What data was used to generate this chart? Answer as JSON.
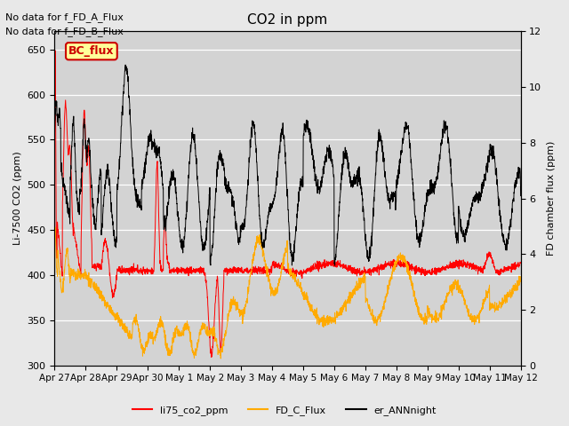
{
  "title": "CO2 in ppm",
  "ylabel_left": "Li-7500 CO2 (ppm)",
  "ylabel_right": "FD chamber flux (ppm)",
  "ylim_left": [
    300,
    670
  ],
  "ylim_right": [
    0,
    12
  ],
  "yticks_left": [
    300,
    350,
    400,
    450,
    500,
    550,
    600,
    650
  ],
  "yticks_right": [
    0,
    2,
    4,
    6,
    8,
    10,
    12
  ],
  "xlabel_dates": [
    "Apr 27",
    "Apr 28",
    "Apr 29",
    "Apr 30",
    "May 1",
    "May 2",
    "May 3",
    "May 4",
    "May 5",
    "May 6",
    "May 7",
    "May 8",
    "May 9",
    "May 10",
    "May 11",
    "May 12"
  ],
  "annotation_text1": "No data for f_FD_A_Flux",
  "annotation_text2": "No data for f_FD_B_Flux",
  "bc_flux_label": "BC_flux",
  "legend_labels": [
    "li75_co2_ppm",
    "FD_C_Flux",
    "er_ANNnight"
  ],
  "legend_colors": [
    "#ff0000",
    "#ffaa00",
    "#000000"
  ],
  "line_red_color": "#ff0000",
  "line_orange_color": "#ffaa00",
  "line_black_color": "#000000",
  "background_color": "#e8e8e8",
  "plot_bg_color": "#d3d3d3",
  "grid_color": "#ffffff",
  "bc_flux_bg": "#ffff99",
  "bc_flux_border": "#cc0000",
  "title_fontsize": 11,
  "label_fontsize": 8,
  "tick_fontsize": 8,
  "annot_fontsize": 8
}
